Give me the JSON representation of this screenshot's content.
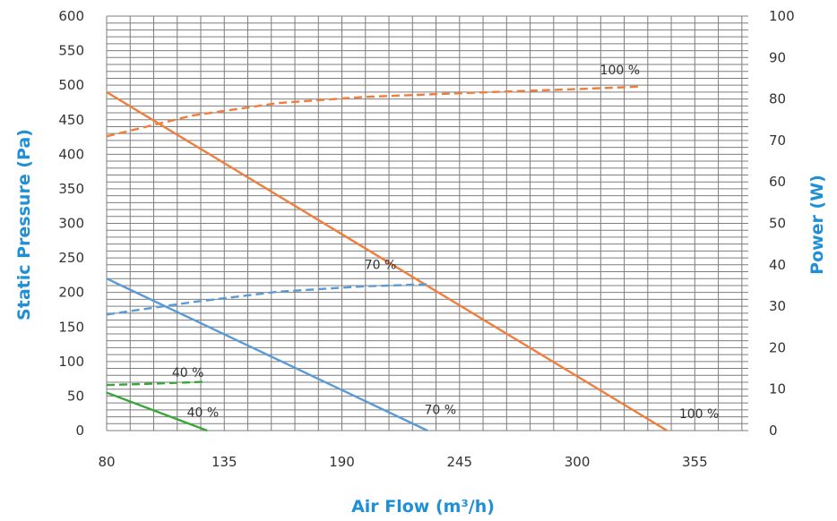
{
  "chart_data": {
    "type": "line",
    "xlabel": "Air Flow (m³/h)",
    "ylabel": "Static Pressure (Pa)",
    "y2label": "Power (W)",
    "xlim": [
      80,
      380
    ],
    "ylim": [
      0,
      600
    ],
    "y2lim": [
      0,
      100
    ],
    "xticks": [
      "80",
      "135",
      "190",
      "245",
      "300",
      "355"
    ],
    "xtick_values": [
      80,
      135,
      190,
      245,
      300,
      355
    ],
    "yticks": [
      "0",
      "50",
      "100",
      "150",
      "200",
      "250",
      "300",
      "350",
      "400",
      "450",
      "500",
      "550",
      "600"
    ],
    "yticks_values": [
      0,
      50,
      100,
      150,
      200,
      250,
      300,
      350,
      400,
      450,
      500,
      550,
      600
    ],
    "y2ticks": [
      "0",
      "10",
      "20",
      "30",
      "40",
      "50",
      "60",
      "70",
      "80",
      "90",
      "100"
    ],
    "y2ticks_values": [
      0,
      10,
      20,
      30,
      40,
      50,
      60,
      70,
      80,
      90,
      100
    ],
    "grid": true,
    "colors": {
      "100": "#f07d3c",
      "70": "#5b9bd5",
      "40": "#3aa63a",
      "axis_title": "#1f8fd6"
    },
    "series": [
      {
        "name": "100 %",
        "axis": "pressure",
        "style": "solid",
        "color_key": "100",
        "points": [
          [
            80,
            490
          ],
          [
            342,
            0
          ]
        ],
        "label_at": [
          357,
          18
        ]
      },
      {
        "name": "70 %",
        "axis": "pressure",
        "style": "solid",
        "color_key": "70",
        "points": [
          [
            80,
            220
          ],
          [
            230,
            0
          ]
        ],
        "label_at": [
          236,
          24
        ]
      },
      {
        "name": "40 %",
        "axis": "pressure",
        "style": "solid",
        "color_key": "40",
        "points": [
          [
            80,
            55
          ],
          [
            127,
            0
          ]
        ],
        "label_at": [
          125,
          20
        ]
      },
      {
        "name": "100 %",
        "axis": "power",
        "style": "dashed",
        "color_key": "100",
        "points": [
          [
            80,
            71
          ],
          [
            120,
            76
          ],
          [
            160,
            79
          ],
          [
            200,
            80.5
          ],
          [
            250,
            81.5
          ],
          [
            300,
            82.4
          ],
          [
            330,
            83
          ]
        ],
        "label_at": [
          320,
          86
        ]
      },
      {
        "name": "70 %",
        "axis": "power",
        "style": "dashed",
        "color_key": "70",
        "points": [
          [
            80,
            28
          ],
          [
            120,
            31
          ],
          [
            160,
            33.5
          ],
          [
            200,
            34.8
          ],
          [
            230,
            35.3
          ]
        ],
        "label_at": [
          208,
          39
        ]
      },
      {
        "name": "40 %",
        "axis": "power",
        "style": "dashed",
        "color_key": "40",
        "points": [
          [
            80,
            11
          ],
          [
            100,
            11.3
          ],
          [
            127,
            11.8
          ]
        ],
        "label_at": [
          118,
          13
        ]
      }
    ]
  }
}
